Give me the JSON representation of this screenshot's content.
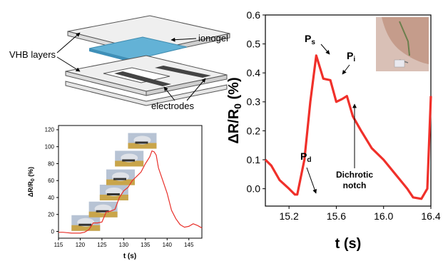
{
  "schematic": {
    "labels": {
      "ionogel": "ionogel",
      "vhb": "VHB layers",
      "electrodes": "electrodes"
    },
    "colors": {
      "ionogel": "#63b2d6",
      "layer": "#efefef",
      "electrode": "#444444"
    }
  },
  "chart_data": [
    {
      "type": "line",
      "panel": "small",
      "xlabel": "t (s)",
      "ylabel_parts": [
        "ΔR/R",
        "0",
        " (%)"
      ],
      "xlim": [
        115,
        148
      ],
      "ylim": [
        -8,
        125
      ],
      "xticks": [
        115,
        120,
        125,
        130,
        135,
        140,
        145
      ],
      "yticks": [
        0,
        20,
        40,
        60,
        80,
        100,
        120
      ],
      "color": "#e8302a",
      "x": [
        115,
        116,
        117,
        118,
        119,
        120,
        121,
        122,
        123,
        124,
        125,
        126,
        127,
        128,
        129,
        130,
        131,
        132,
        133,
        134,
        135,
        136,
        136.5,
        137,
        137.5,
        138,
        139,
        140,
        141,
        142,
        143,
        144,
        145,
        146,
        147,
        148
      ],
      "y": [
        -1,
        -1,
        -1.5,
        -2,
        -2,
        -2,
        -1,
        2,
        10,
        10,
        11,
        23,
        24,
        26,
        40,
        48,
        52,
        60,
        65,
        70,
        80,
        88,
        95,
        94,
        90,
        75,
        60,
        45,
        25,
        15,
        8,
        5,
        6,
        9,
        7,
        4
      ],
      "photo_frames": 6
    },
    {
      "type": "line",
      "panel": "large",
      "xlabel": "t (s)",
      "ylabel_parts": [
        "ΔR/R",
        "0",
        " (%)"
      ],
      "xlim": [
        15.0,
        16.4
      ],
      "ylim": [
        -0.06,
        0.6
      ],
      "xticks": [
        15.2,
        15.6,
        16.0,
        16.4
      ],
      "xtick_labels": [
        "15.2",
        "15.6",
        "16.0",
        "16.4"
      ],
      "yticks": [
        0.0,
        0.1,
        0.2,
        0.3,
        0.4,
        0.5,
        0.6
      ],
      "ytick_labels": [
        "0.0",
        "0.1",
        "0.2",
        "0.3",
        "0.4",
        "0.5",
        "0.6"
      ],
      "color": "#f0302a",
      "x": [
        15.0,
        15.05,
        15.12,
        15.2,
        15.25,
        15.27,
        15.33,
        15.38,
        15.43,
        15.49,
        15.55,
        15.6,
        15.65,
        15.69,
        15.74,
        15.81,
        15.9,
        16.0,
        16.1,
        16.2,
        16.25,
        16.32,
        16.37,
        16.4
      ],
      "y": [
        0.1,
        0.08,
        0.03,
        0.0,
        -0.02,
        -0.02,
        0.1,
        0.3,
        0.46,
        0.38,
        0.375,
        0.3,
        0.31,
        0.32,
        0.25,
        0.2,
        0.14,
        0.1,
        0.05,
        0.0,
        -0.03,
        -0.035,
        0.0,
        0.32
      ],
      "annotations": [
        {
          "main": "P",
          "sub": "s"
        },
        {
          "main": "P",
          "sub": "i"
        },
        {
          "main": "P",
          "sub": "d"
        },
        {
          "lines": [
            "Dichrotic",
            "notch"
          ]
        }
      ]
    }
  ]
}
